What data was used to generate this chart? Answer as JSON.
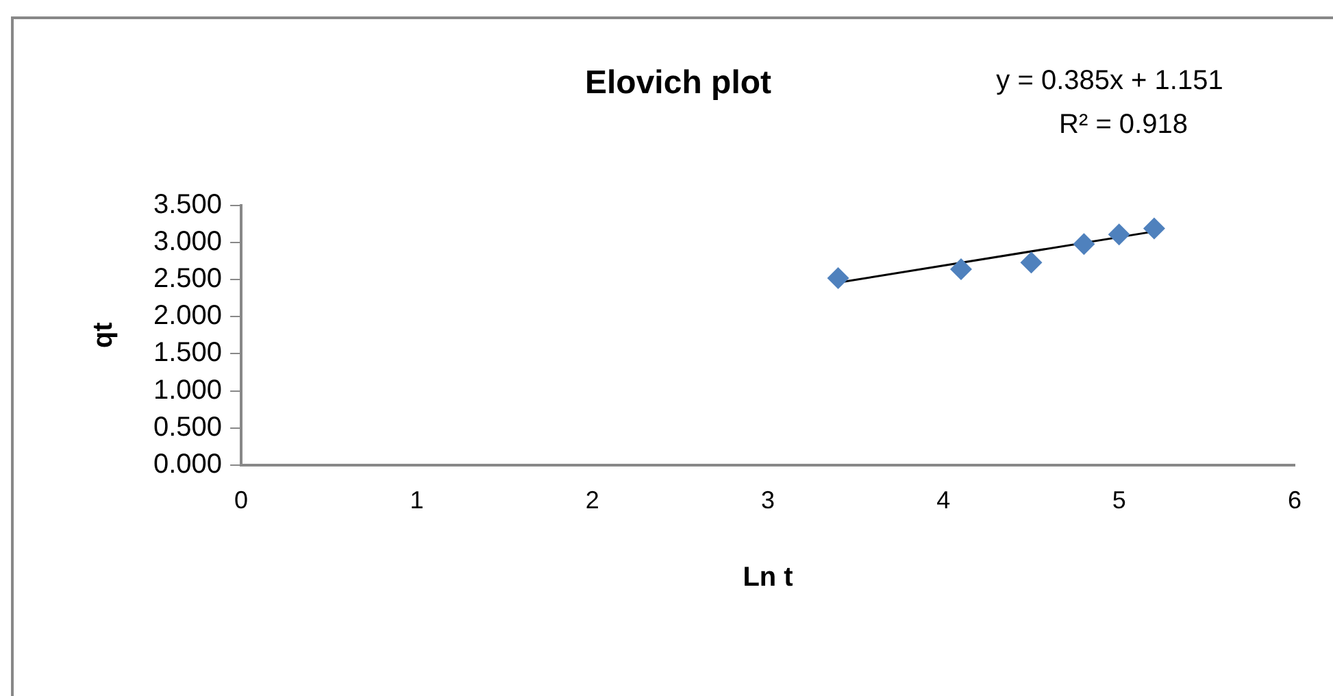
{
  "chart_data": {
    "type": "scatter",
    "title": "Elovich plot",
    "xlabel": "Ln t",
    "ylabel": "qt",
    "annotations": [
      "y = 0.385x + 1.151",
      "R² = 0.918"
    ],
    "x": [
      3.4,
      4.1,
      4.5,
      4.8,
      5.0,
      5.2
    ],
    "series": [
      {
        "color": "#4f81bd",
        "values": [
          2.52,
          2.64,
          2.73,
          2.98,
          3.11,
          3.19
        ],
        "marker": "diamond"
      },
      {
        "type": "line",
        "color": "#000000",
        "x": [
          3.4,
          5.2
        ],
        "values": [
          2.46,
          3.15
        ],
        "marker": "none"
      }
    ],
    "xlim": [
      0,
      6
    ],
    "xticks": [
      0,
      1,
      2,
      3,
      4,
      5,
      6
    ],
    "ylim": [
      0,
      3.5
    ],
    "yticks": [
      {
        "value": 0,
        "label": "0.000"
      },
      {
        "value": 0.5,
        "label": "0.500"
      },
      {
        "value": 1,
        "label": "1.000"
      },
      {
        "value": 1.5,
        "label": "1.500"
      },
      {
        "value": 2,
        "label": "2.000"
      },
      {
        "value": 2.5,
        "label": "2.500"
      },
      {
        "value": 3,
        "label": "3.000"
      },
      {
        "value": 3.5,
        "label": "3.500"
      }
    ],
    "grid": false,
    "legend": false
  }
}
